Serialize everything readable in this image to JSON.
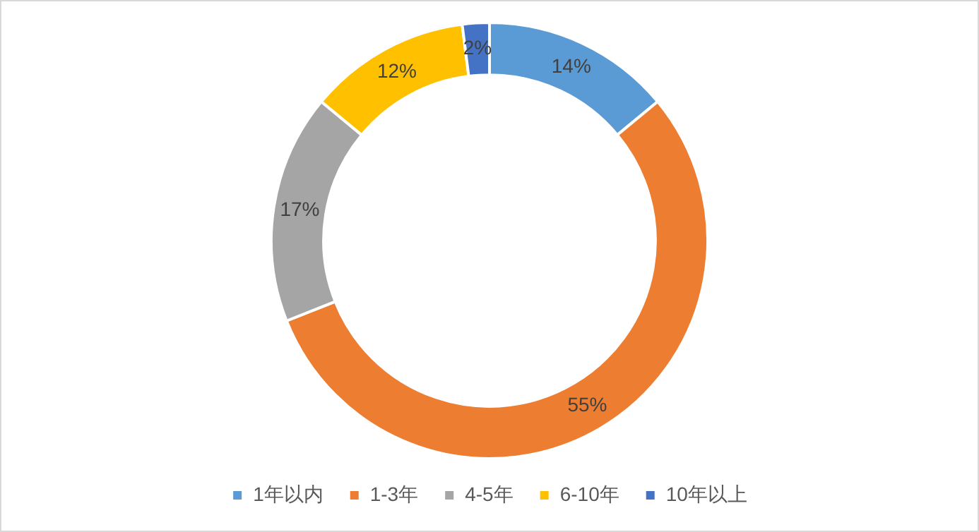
{
  "chart_data": {
    "type": "donut",
    "categories": [
      "1年以内",
      "1-3年",
      "4-5年",
      "6-10年",
      "10年以上"
    ],
    "values": [
      14,
      55,
      17,
      12,
      2
    ],
    "value_labels": [
      "14%",
      "55%",
      "17%",
      "12%",
      "2%"
    ],
    "colors": [
      "#5b9bd5",
      "#ed7d31",
      "#a5a5a5",
      "#ffc000",
      "#4472c4"
    ],
    "legend": "bottom"
  }
}
